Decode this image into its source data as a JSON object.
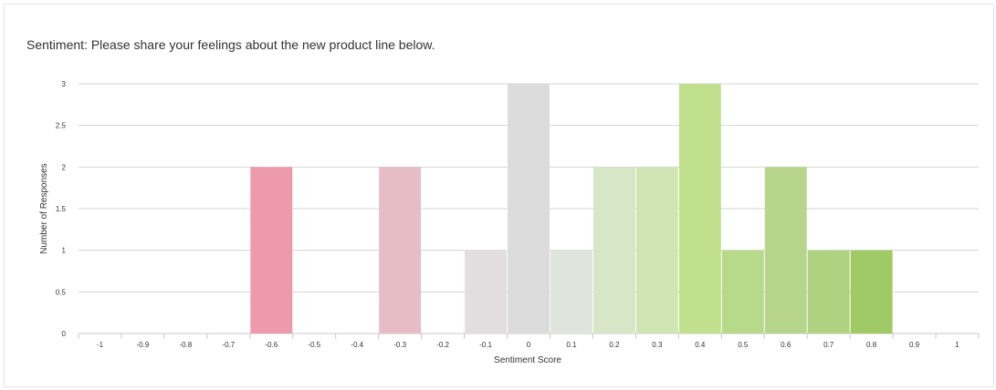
{
  "chart_data": {
    "type": "bar",
    "title": "Sentiment: Please share your feelings about the new product line below.",
    "xlabel": "Sentiment Score",
    "ylabel": "Number of Responses",
    "ylim": [
      0,
      3
    ],
    "yticks": [
      "0",
      "0.5",
      "1",
      "1.5",
      "2",
      "2.5",
      "3"
    ],
    "categories": [
      "-1",
      "-0.9",
      "-0.8",
      "-0.7",
      "-0.6",
      "-0.5",
      "-0.4",
      "-0.3",
      "-0.2",
      "-0.1",
      "0",
      "0.1",
      "0.2",
      "0.3",
      "0.4",
      "0.5",
      "0.6",
      "0.7",
      "0.8",
      "0.9",
      "1"
    ],
    "values": [
      0,
      0,
      0,
      0,
      2,
      0,
      0,
      2,
      0,
      1,
      3,
      1,
      2,
      2,
      3,
      1,
      2,
      1,
      1,
      0,
      0
    ],
    "colors": [
      "#ee99ad",
      "#ee99ad",
      "#ee99ad",
      "#ee99ad",
      "#ee9aad",
      "#ecaab9",
      "#e8b1bf",
      "#e6bcc5",
      "#e4d0d4",
      "#e2dee0",
      "#dcdcdc",
      "#dfe5dc",
      "#d6e6c6",
      "#cfe6b4",
      "#c0e08e",
      "#b6d98a",
      "#b7d68c",
      "#aed27f",
      "#a0ca65",
      "#a0ca65",
      "#a0ca65"
    ],
    "grid": true,
    "legend": "none"
  }
}
